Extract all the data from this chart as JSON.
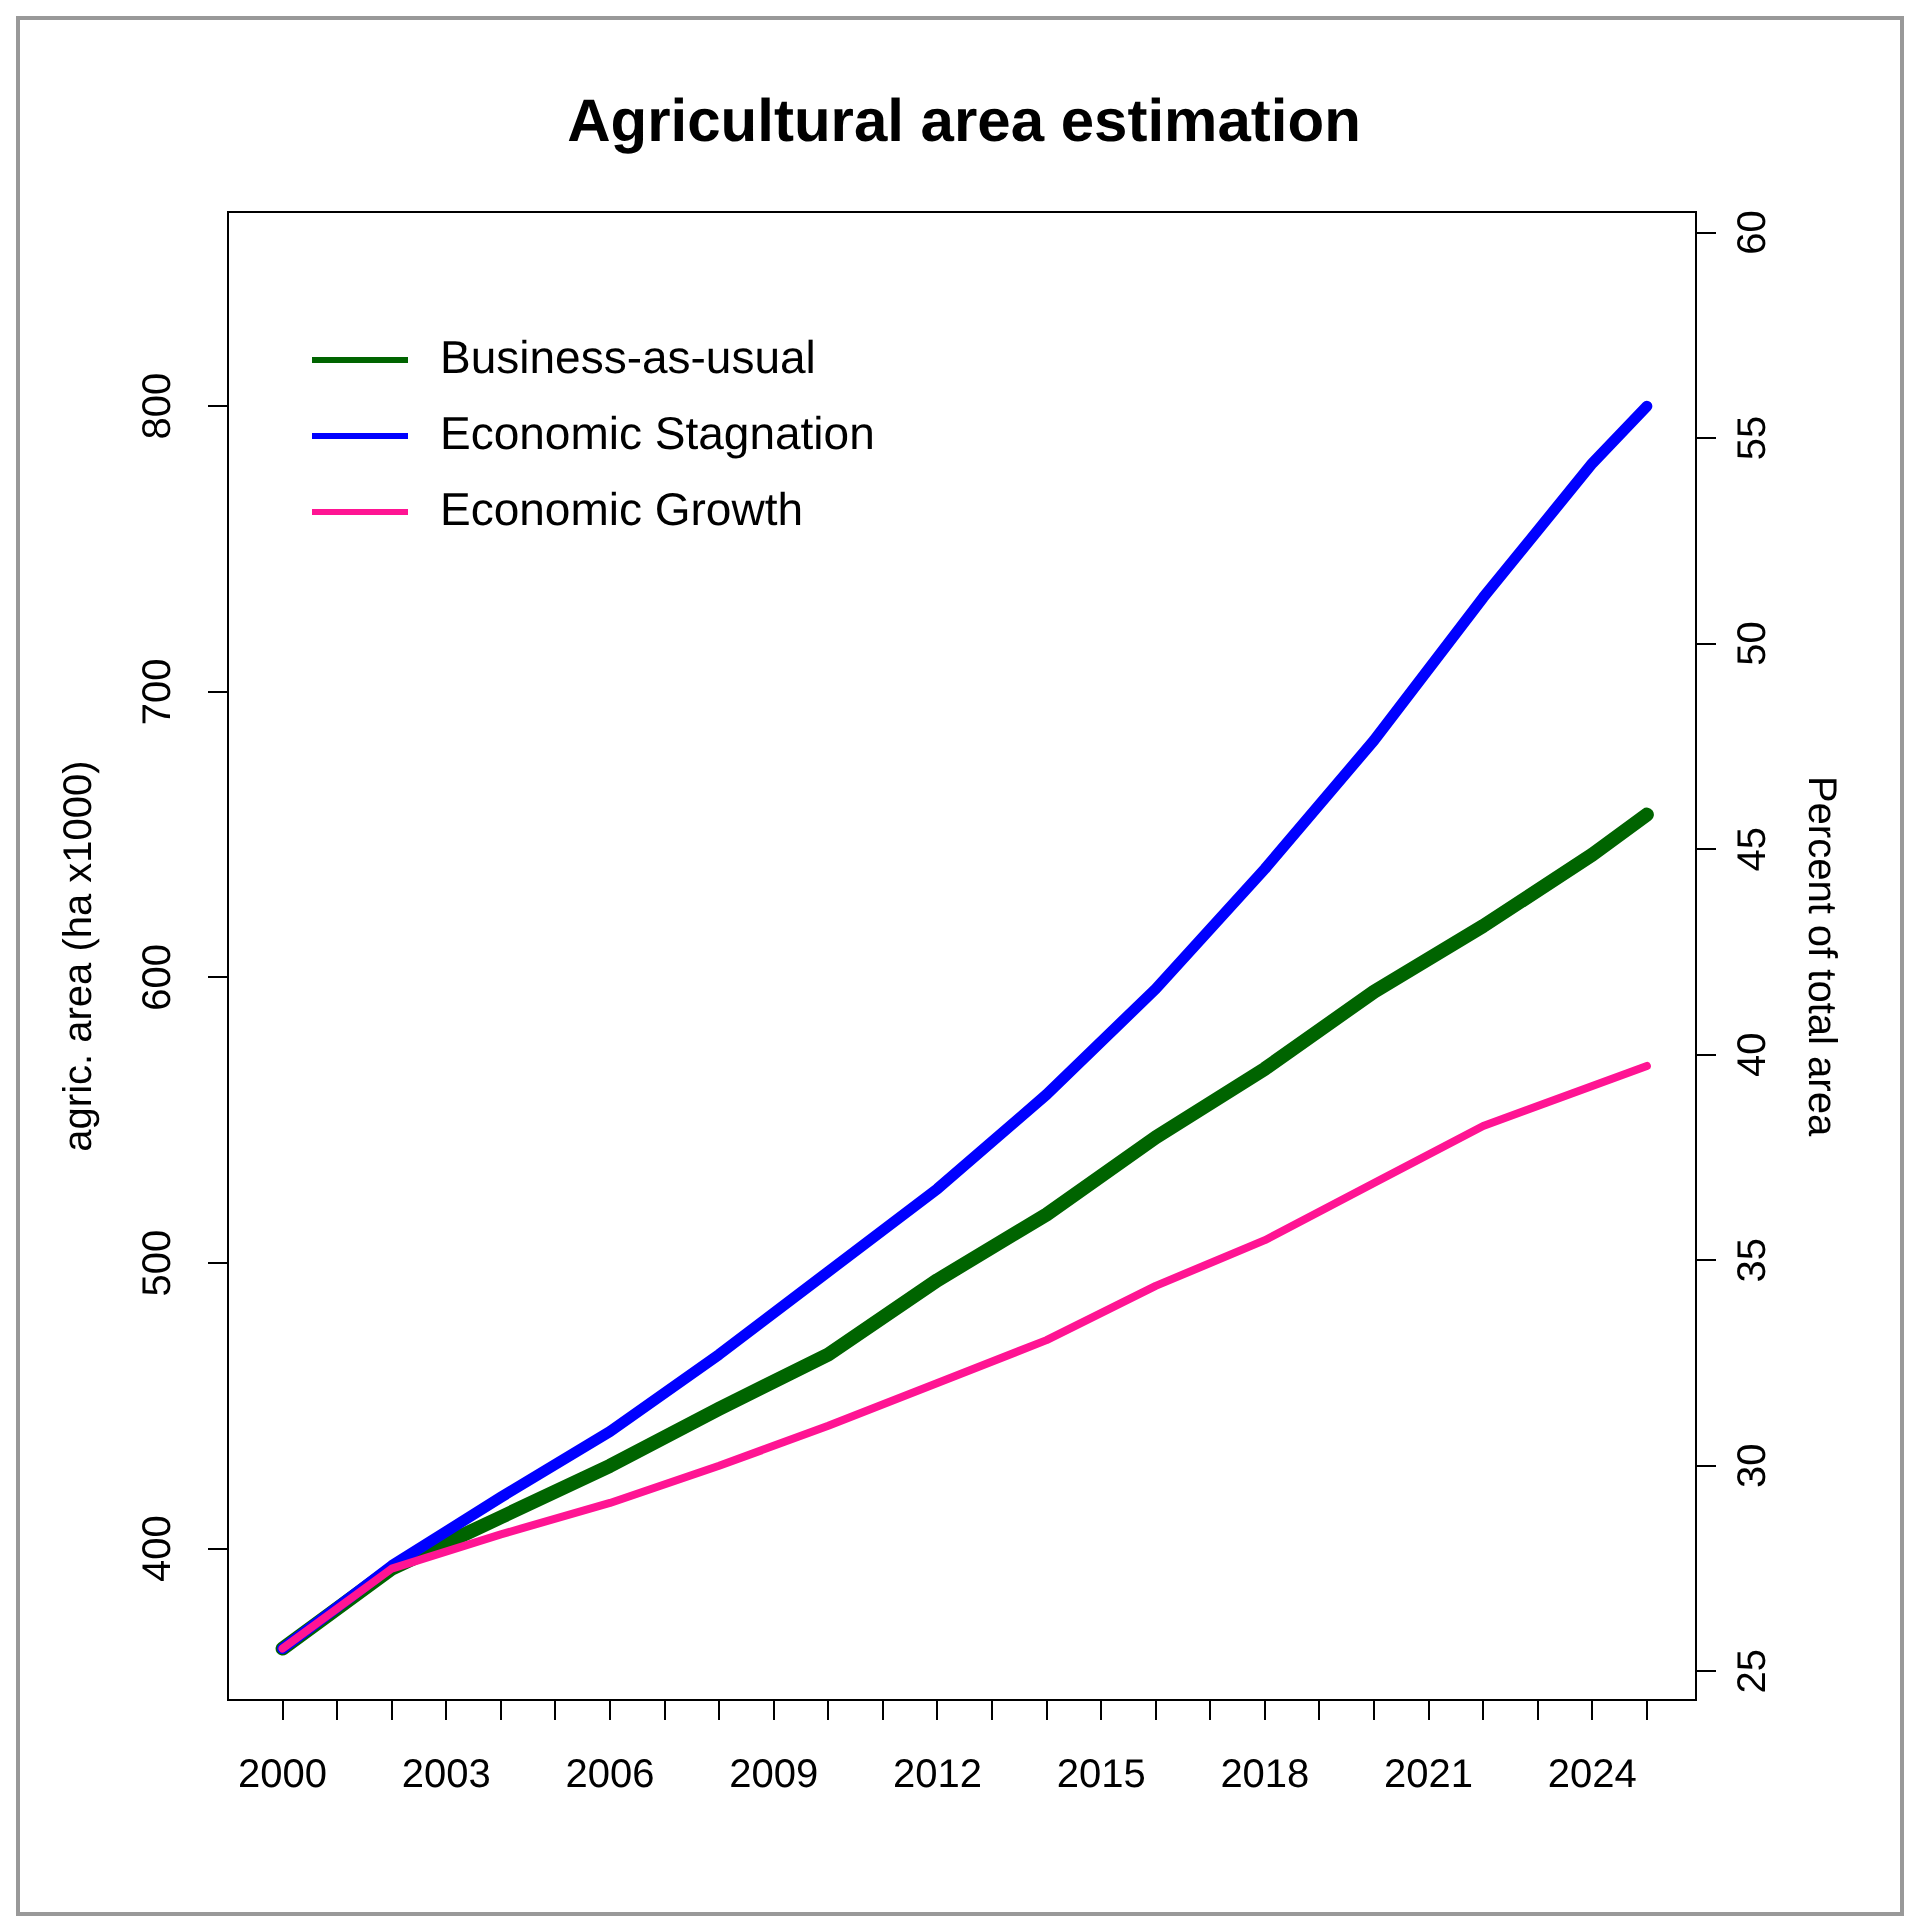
{
  "chart_data": {
    "type": "line",
    "title": "Agricultural area estimation",
    "ylabel": "agric. area (ha x1000)",
    "y2label": "Percent of total area",
    "x": [
      2000,
      2002,
      2004,
      2006,
      2008,
      2010,
      2012,
      2014,
      2016,
      2018,
      2020,
      2022,
      2024,
      2025
    ],
    "series": [
      {
        "name": "Business-as-usual",
        "color": "#006400",
        "values": [
          365,
          393,
          411,
          429,
          449,
          468,
          494,
          517,
          544,
          568,
          595,
          618,
          643,
          657
        ]
      },
      {
        "name": "Economic Stagnation",
        "color": "#0000ff",
        "values": [
          365,
          394,
          418,
          441,
          468,
          497,
          526,
          559,
          596,
          638,
          683,
          733,
          780,
          800
        ]
      },
      {
        "name": "Economic Growth",
        "color": "#ff1493",
        "values": [
          365,
          393,
          405,
          416,
          429,
          443,
          458,
          473,
          492,
          508,
          528,
          548,
          562,
          569
        ]
      }
    ],
    "xlim": [
      1999,
      2025.9
    ],
    "xticks": [
      2000,
      {
        "value": 2001,
        "label": null
      },
      {
        "value": 2002,
        "label": null
      },
      2003,
      {
        "value": 2004,
        "label": null
      },
      {
        "value": 2005,
        "label": null
      },
      2006,
      {
        "value": 2007,
        "label": null
      },
      {
        "value": 2008,
        "label": null
      },
      2009,
      {
        "value": 2010,
        "label": null
      },
      {
        "value": 2011,
        "label": null
      },
      2012,
      {
        "value": 2013,
        "label": null
      },
      {
        "value": 2014,
        "label": null
      },
      2015,
      {
        "value": 2016,
        "label": null
      },
      {
        "value": 2017,
        "label": null
      },
      2018,
      {
        "value": 2019,
        "label": null
      },
      {
        "value": 2020,
        "label": null
      },
      2021,
      {
        "value": 2022,
        "label": null
      },
      {
        "value": 2023,
        "label": null
      },
      2024,
      {
        "value": 2025,
        "label": null
      }
    ],
    "ylim": [
      347,
      868
    ],
    "yticks": [
      400,
      500,
      600,
      700,
      800
    ],
    "y2lim": [
      24.3,
      60.5
    ],
    "y2ticks": [
      25,
      30,
      35,
      40,
      45,
      50,
      55,
      60
    ],
    "legend": "top left",
    "grid": false,
    "marker": "none",
    "line_style": "solid"
  }
}
